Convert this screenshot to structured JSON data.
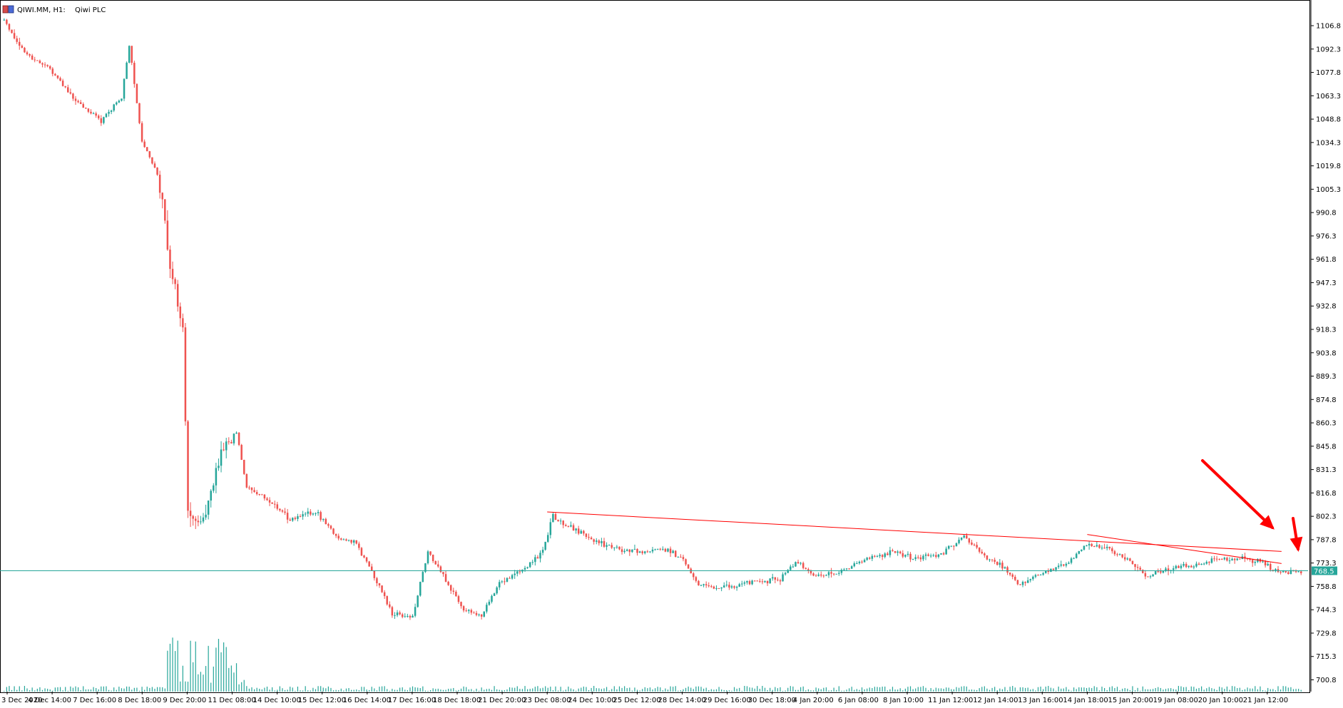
{
  "window": {
    "symbol_label": "QIWI.MM, H1:",
    "instrument_name": "Qiwi PLC"
  },
  "chart_data": {
    "type": "candlestick",
    "symbol": "QIWI.MM",
    "timeframe": "H1",
    "instrument": "Qiwi PLC",
    "ylim": [
      693.5,
      1113.0
    ],
    "y_ticks": [
      "1106.8",
      "1092.3",
      "1077.8",
      "1063.3",
      "1048.8",
      "1034.3",
      "1019.8",
      "1005.3",
      "990.8",
      "976.3",
      "961.8",
      "947.3",
      "932.8",
      "918.3",
      "903.8",
      "889.3",
      "874.8",
      "860.3",
      "845.8",
      "831.3",
      "816.8",
      "802.3",
      "787.8",
      "773.3",
      "758.8",
      "744.3",
      "729.8",
      "715.3",
      "700.8"
    ],
    "x_ticks": [
      "3 Dec 2020",
      "4 Dec 14:00",
      "7 Dec 16:00",
      "8 Dec 18:00",
      "9 Dec 20:00",
      "11 Dec 08:00",
      "14 Dec 10:00",
      "15 Dec 12:00",
      "16 Dec 14:00",
      "17 Dec 16:00",
      "18 Dec 18:00",
      "21 Dec 20:00",
      "23 Dec 08:00",
      "24 Dec 10:00",
      "25 Dec 12:00",
      "28 Dec 14:00",
      "29 Dec 16:00",
      "30 Dec 18:00",
      "4 Jan 20:00",
      "6 Jan 08:00",
      "8 Jan 10:00",
      "11 Jan 12:00",
      "12 Jan 14:00",
      "13 Jan 16:00",
      "14 Jan 18:00",
      "15 Jan 20:00",
      "19 Jan 08:00",
      "20 Jan 10:00",
      "21 Jan 12:00"
    ],
    "current_price": "768.5",
    "support_level": 768.5,
    "bull_color": "#26a69a",
    "bear_color": "#ef5350",
    "trendline_color": "#ff0000",
    "anchors": [
      {
        "i": 0,
        "p": 1110
      },
      {
        "i": 8,
        "p": 1090
      },
      {
        "i": 18,
        "p": 1080
      },
      {
        "i": 28,
        "p": 1060
      },
      {
        "i": 38,
        "p": 1048
      },
      {
        "i": 46,
        "p": 1062
      },
      {
        "i": 49,
        "p": 1095
      },
      {
        "i": 54,
        "p": 1035
      },
      {
        "i": 60,
        "p": 1015
      },
      {
        "i": 66,
        "p": 950
      },
      {
        "i": 70,
        "p": 920
      },
      {
        "i": 72,
        "p": 805
      },
      {
        "i": 78,
        "p": 800
      },
      {
        "i": 86,
        "p": 845
      },
      {
        "i": 91,
        "p": 855
      },
      {
        "i": 95,
        "p": 820
      },
      {
        "i": 104,
        "p": 812
      },
      {
        "i": 112,
        "p": 800
      },
      {
        "i": 122,
        "p": 805
      },
      {
        "i": 130,
        "p": 790
      },
      {
        "i": 138,
        "p": 785
      },
      {
        "i": 145,
        "p": 765
      },
      {
        "i": 152,
        "p": 742
      },
      {
        "i": 160,
        "p": 740
      },
      {
        "i": 166,
        "p": 780
      },
      {
        "i": 172,
        "p": 765
      },
      {
        "i": 180,
        "p": 745
      },
      {
        "i": 187,
        "p": 740
      },
      {
        "i": 194,
        "p": 762
      },
      {
        "i": 202,
        "p": 768
      },
      {
        "i": 210,
        "p": 778
      },
      {
        "i": 215,
        "p": 802
      },
      {
        "i": 222,
        "p": 795
      },
      {
        "i": 230,
        "p": 788
      },
      {
        "i": 240,
        "p": 782
      },
      {
        "i": 250,
        "p": 780
      },
      {
        "i": 260,
        "p": 782
      },
      {
        "i": 266,
        "p": 775
      },
      {
        "i": 272,
        "p": 760
      },
      {
        "i": 282,
        "p": 758
      },
      {
        "i": 294,
        "p": 762
      },
      {
        "i": 304,
        "p": 763
      },
      {
        "i": 310,
        "p": 774
      },
      {
        "i": 318,
        "p": 765
      },
      {
        "i": 328,
        "p": 768
      },
      {
        "i": 338,
        "p": 776
      },
      {
        "i": 348,
        "p": 780
      },
      {
        "i": 358,
        "p": 776
      },
      {
        "i": 368,
        "p": 780
      },
      {
        "i": 376,
        "p": 790
      },
      {
        "i": 384,
        "p": 778
      },
      {
        "i": 392,
        "p": 770
      },
      {
        "i": 398,
        "p": 760
      },
      {
        "i": 406,
        "p": 767
      },
      {
        "i": 416,
        "p": 772
      },
      {
        "i": 424,
        "p": 785
      },
      {
        "i": 432,
        "p": 782
      },
      {
        "i": 440,
        "p": 775
      },
      {
        "i": 448,
        "p": 765
      },
      {
        "i": 456,
        "p": 770
      },
      {
        "i": 466,
        "p": 772
      },
      {
        "i": 474,
        "p": 776
      },
      {
        "i": 484,
        "p": 776
      },
      {
        "i": 492,
        "p": 775
      },
      {
        "i": 498,
        "p": 768
      },
      {
        "i": 508,
        "p": 768
      }
    ],
    "trendlines": [
      {
        "from": {
          "x_tick": "23 Dec 08:00",
          "price": 805.0
        },
        "to": {
          "x_tick": "21 Jan 12:00",
          "price": 780.5
        }
      },
      {
        "from": {
          "x_tick": "14 Jan 18:00",
          "price": 791.0
        },
        "to": {
          "x_tick": "21 Jan 12:00",
          "price": 773.0
        }
      }
    ],
    "arrows": [
      {
        "color": "#ff0000",
        "label": ""
      },
      {
        "color": "#ff0000",
        "label": ""
      }
    ]
  }
}
